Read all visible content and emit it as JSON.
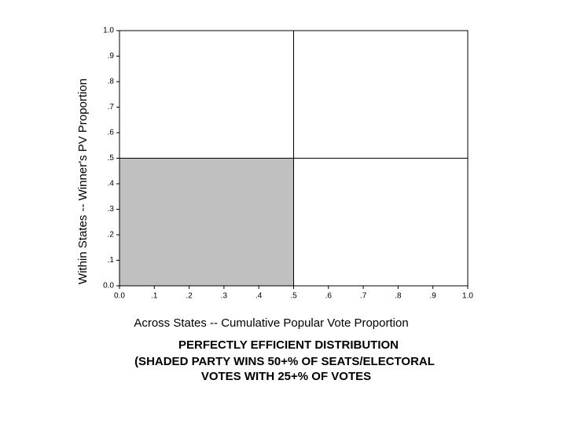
{
  "chart_data": {
    "type": "area",
    "title": [
      "PERFECTLY EFFICIENT DISTRIBUTION",
      "(SHADED PARTY WINS 50+% OF SEATS/ELECTORAL",
      "VOTES WITH 25+% OF VOTES"
    ],
    "xlabel": "Across States -- Cumulative Popular Vote Proportion",
    "ylabel": "Within States -- Winner's PV Proportion",
    "x": [
      0,
      0.5
    ],
    "values": [
      0.5,
      0.5
    ],
    "color": "#c0c0c0",
    "hlines": [
      0.5
    ],
    "vlines": [
      0.5
    ],
    "xlim": [
      0,
      1
    ],
    "ylim": [
      0,
      1
    ],
    "xticks": [
      {
        "value": 0,
        "label": "0.0"
      },
      {
        "value": 0.1,
        "label": ".1"
      },
      {
        "value": 0.2,
        "label": ".2"
      },
      {
        "value": 0.3,
        "label": ".3"
      },
      {
        "value": 0.4,
        "label": ".4"
      },
      {
        "value": 0.5,
        "label": ".5"
      },
      {
        "value": 0.6,
        "label": ".6"
      },
      {
        "value": 0.7,
        "label": ".7"
      },
      {
        "value": 0.8,
        "label": ".8"
      },
      {
        "value": 0.9,
        "label": ".9"
      },
      {
        "value": 1,
        "label": "1.0"
      }
    ],
    "yticks": [
      {
        "value": 0,
        "label": "0.0"
      },
      {
        "value": 0.1,
        "label": ".1"
      },
      {
        "value": 0.2,
        "label": ".2"
      },
      {
        "value": 0.3,
        "label": ".3"
      },
      {
        "value": 0.4,
        "label": ".4"
      },
      {
        "value": 0.5,
        "label": ".5"
      },
      {
        "value": 0.6,
        "label": ".6"
      },
      {
        "value": 0.7,
        "label": ".7"
      },
      {
        "value": 0.8,
        "label": ".8"
      },
      {
        "value": 0.9,
        "label": ".9"
      },
      {
        "value": 1,
        "label": "1.0"
      }
    ],
    "grid": false
  }
}
